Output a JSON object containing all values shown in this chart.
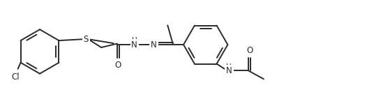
{
  "bg_color": "#ffffff",
  "line_color": "#2a2a2a",
  "line_width": 1.4,
  "font_size": 8.5,
  "fig_width": 5.26,
  "fig_height": 1.42,
  "dpi": 100,
  "xlim": [
    0,
    52.6
  ],
  "ylim": [
    0,
    14.2
  ]
}
